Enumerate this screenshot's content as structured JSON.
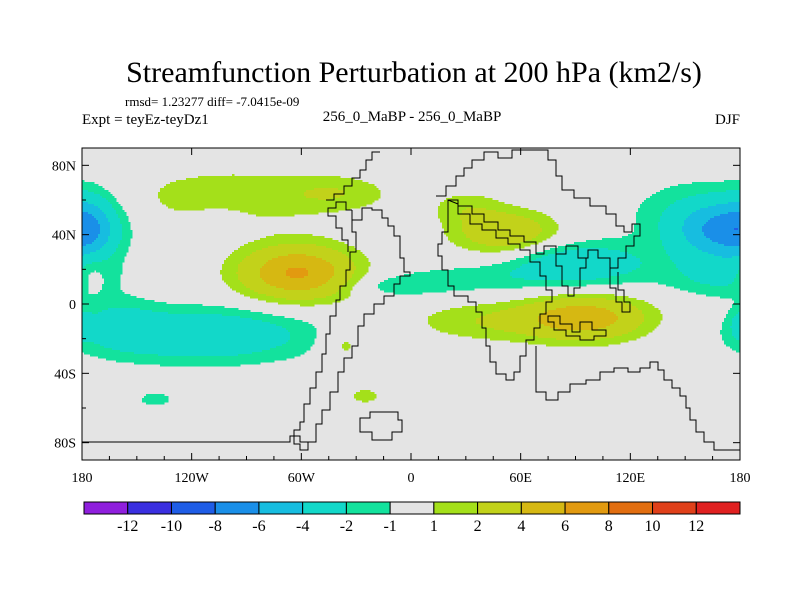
{
  "chart_data": {
    "type": "contour-map",
    "title": "Streamfunction Perturbation at 200 hPa (km2/s)",
    "stats": "rmsd= 1.23277 diff= -7.0415e-09",
    "left_label": "Expt = teyEz-teyDz1",
    "center_label": "256_0_MaBP - 256_0_MaBP",
    "right_label": "DJF",
    "xlim": [
      -180,
      180
    ],
    "ylim": [
      -90,
      90
    ],
    "x_ticks": [
      {
        "value": -180,
        "label": "180"
      },
      {
        "value": -120,
        "label": "120W"
      },
      {
        "value": -60,
        "label": "60W"
      },
      {
        "value": 0,
        "label": "0"
      },
      {
        "value": 60,
        "label": "60E"
      },
      {
        "value": 120,
        "label": "120E"
      },
      {
        "value": 180,
        "label": "180"
      }
    ],
    "y_ticks": [
      {
        "value": 80,
        "label": "80N"
      },
      {
        "value": 40,
        "label": "40N"
      },
      {
        "value": 0,
        "label": "0"
      },
      {
        "value": -40,
        "label": "40S"
      },
      {
        "value": -80,
        "label": "80S"
      }
    ],
    "colorbar": {
      "colors": [
        "#8f1fdd",
        "#3a2fe0",
        "#1f5de6",
        "#1a8fe8",
        "#17bde0",
        "#12d8c9",
        "#13e29d",
        "#e4e4e4",
        "#a4e01a",
        "#c2d21a",
        "#d6b812",
        "#e29a10",
        "#e26e10",
        "#e0401a",
        "#e02020"
      ],
      "labels": [
        "-12",
        "-10",
        "-8",
        "-6",
        "-4",
        "-2",
        "-1",
        "1",
        "2",
        "4",
        "6",
        "8",
        "10",
        "12"
      ]
    },
    "fields": [
      {
        "lon": 170,
        "lat": 42,
        "sx": 18,
        "sy": 12,
        "amp": -5.5
      },
      {
        "lon": 155,
        "lat": 52,
        "sx": 30,
        "sy": 16,
        "amp": -1.5
      },
      {
        "lon": -175,
        "lat": 45,
        "sx": 10,
        "sy": 14,
        "amp": -2.8
      },
      {
        "lon": -105,
        "lat": 47,
        "sx": 10,
        "sy": 5,
        "amp": -1.6
      },
      {
        "lon": 170,
        "lat": 15,
        "sx": 22,
        "sy": 8,
        "amp": -2.0
      },
      {
        "lon": -175,
        "lat": 18,
        "sx": 6,
        "sy": 7,
        "amp": 1.6
      },
      {
        "lon": -62,
        "lat": 18,
        "sx": 22,
        "sy": 11,
        "amp": 6.3
      },
      {
        "lon": -100,
        "lat": 62,
        "sx": 42,
        "sy": 12,
        "amp": 1.7
      },
      {
        "lon": -40,
        "lat": 64,
        "sx": 20,
        "sy": 7,
        "amp": 1.5
      },
      {
        "lon": 52,
        "lat": 41,
        "sx": 20,
        "sy": 9,
        "amp": 3.7
      },
      {
        "lon": 30,
        "lat": 56,
        "sx": 14,
        "sy": 7,
        "amp": 1.4
      },
      {
        "lon": 90,
        "lat": 23,
        "sx": 28,
        "sy": 9,
        "amp": -3.6
      },
      {
        "lon": 25,
        "lat": 14,
        "sx": 32,
        "sy": 6,
        "amp": -1.5
      },
      {
        "lon": -10,
        "lat": 10,
        "sx": 18,
        "sy": 4,
        "amp": -1.3
      },
      {
        "lon": 95,
        "lat": -8,
        "sx": 24,
        "sy": 9,
        "amp": 5.2
      },
      {
        "lon": 40,
        "lat": -10,
        "sx": 30,
        "sy": 8,
        "amp": 1.8
      },
      {
        "lon": -115,
        "lat": -18,
        "sx": 44,
        "sy": 11,
        "amp": -3.8
      },
      {
        "lon": -160,
        "lat": -10,
        "sx": 14,
        "sy": 10,
        "amp": -1.6
      },
      {
        "lon": -37,
        "lat": -23,
        "sx": 9,
        "sy": 8,
        "amp": 1.7
      },
      {
        "lon": -140,
        "lat": -55,
        "sx": 7,
        "sy": 3,
        "amp": -1.7
      },
      {
        "lon": -25,
        "lat": -53,
        "sx": 6,
        "sy": 3,
        "amp": 1.7
      },
      {
        "lon": 180,
        "lat": -12,
        "sx": 4,
        "sy": 6,
        "amp": -1.6
      }
    ]
  }
}
